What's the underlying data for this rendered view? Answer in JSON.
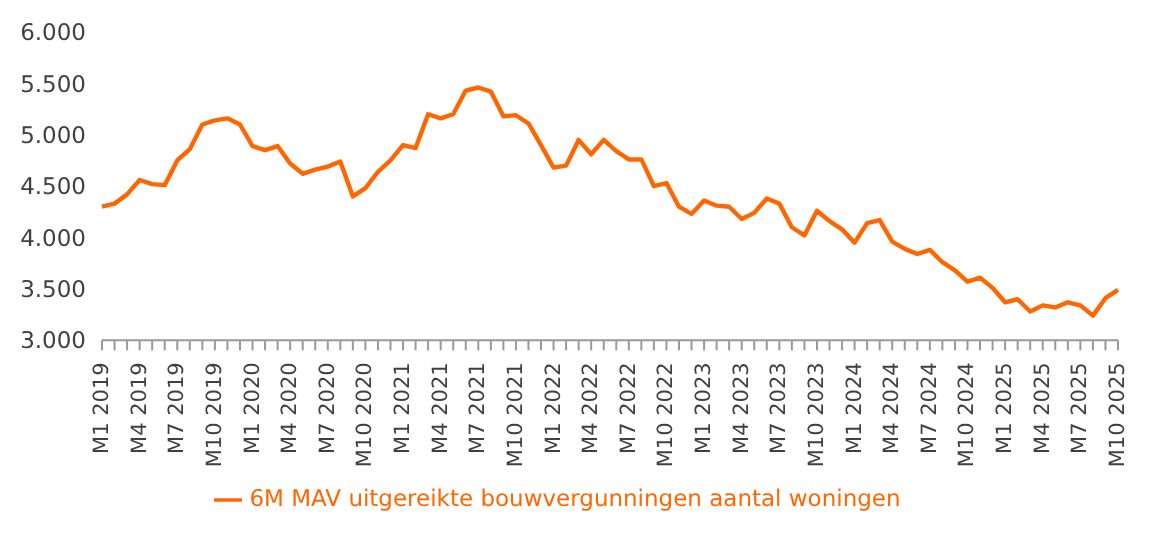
{
  "chart_data": {
    "type": "line",
    "categories": [
      "M1 2019",
      null,
      null,
      "M4 2019",
      null,
      null,
      "M7 2019",
      null,
      null,
      "M10 2019",
      null,
      null,
      "M1 2020",
      null,
      null,
      "M4 2020",
      null,
      null,
      "M7 2020",
      null,
      null,
      "M10 2020",
      null,
      null,
      "M1 2021",
      null,
      null,
      "M4 2021",
      null,
      null,
      "M7 2021",
      null,
      null,
      "M10 2021",
      null,
      null,
      "M1 2022",
      null,
      null,
      "M4 2022",
      null,
      null,
      "M7 2022",
      null,
      null,
      "M10 2022",
      null,
      null,
      "M1 2023",
      null,
      null,
      "M4 2023",
      null,
      null,
      "M7 2023",
      null,
      null,
      "M10 2023",
      null,
      null,
      "M1 2024",
      null,
      null,
      "M4 2024",
      null,
      null,
      "M7 2024",
      null,
      null,
      "M10 2024",
      null,
      null,
      "M1 2025",
      null,
      null,
      "M4 2025",
      null,
      null,
      "M7 2025",
      null,
      null,
      "M10 2025"
    ],
    "series": [
      {
        "name": "6M MAV uitgereikte bouwvergunningen aantal woningen",
        "color": "#ff6600",
        "values": [
          4300,
          4330,
          4420,
          4560,
          4520,
          4510,
          4750,
          4860,
          5100,
          5140,
          5160,
          5100,
          4890,
          4850,
          4890,
          4720,
          4620,
          4660,
          4690,
          4740,
          4400,
          4480,
          4640,
          4750,
          4900,
          4870,
          5200,
          5160,
          5200,
          5430,
          5460,
          5420,
          5180,
          5190,
          5110,
          4900,
          4680,
          4700,
          4950,
          4810,
          4950,
          4840,
          4760,
          4760,
          4500,
          4530,
          4300,
          4230,
          4360,
          4310,
          4300,
          4180,
          4240,
          4380,
          4330,
          4100,
          4020,
          4260,
          4160,
          4080,
          3950,
          4140,
          4170,
          3960,
          3890,
          3840,
          3880,
          3760,
          3680,
          3570,
          3610,
          3510,
          3370,
          3400,
          3280,
          3340,
          3320,
          3370,
          3340,
          3240,
          3410,
          3490
        ]
      }
    ],
    "ylim": [
      3000,
      6000
    ],
    "yticks": [
      {
        "value": 3000,
        "label": "3.000"
      },
      {
        "value": 3500,
        "label": "3.500"
      },
      {
        "value": 4000,
        "label": "4.000"
      },
      {
        "value": 4500,
        "label": "4.500"
      },
      {
        "value": 5000,
        "label": "5.000"
      },
      {
        "value": 5500,
        "label": "5.500"
      },
      {
        "value": 6000,
        "label": "6.000"
      }
    ],
    "grid": false,
    "legend": "bottom",
    "marker": "none",
    "line_style": "solid"
  }
}
